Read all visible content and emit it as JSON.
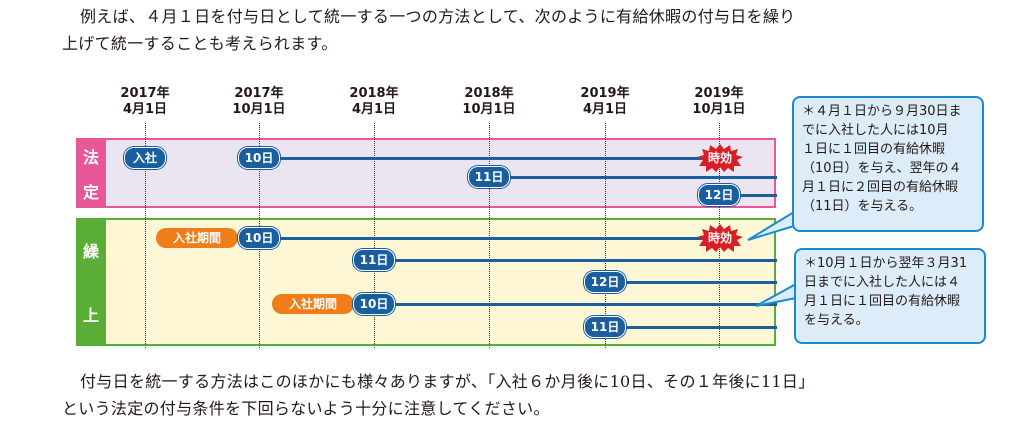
{
  "intro": {
    "line1": "例えば、４月１日を付与日として統一する一つの方法として、次のように有給休暇の付与日を繰り",
    "line2": "上げて統一することも考えられます。"
  },
  "timeline": {
    "dates": [
      {
        "year": "2017年",
        "day": "4月1日"
      },
      {
        "year": "2017年",
        "day": "10月1日"
      },
      {
        "year": "2018年",
        "day": "4月1日"
      },
      {
        "year": "2018年",
        "day": "10月1日"
      },
      {
        "year": "2019年",
        "day": "4月1日"
      },
      {
        "year": "2019年",
        "day": "10月1日"
      }
    ]
  },
  "hotei": {
    "label_1": "法",
    "label_2": "定",
    "join": "入社",
    "grant_10": "10日",
    "grant_11": "11日",
    "grant_12": "12日",
    "expire": "時効"
  },
  "kuriage": {
    "label_1": "繰",
    "label_2": "上",
    "period_1": "入社期間",
    "grant_10a": "10日",
    "grant_11a": "11日",
    "grant_12": "12日",
    "period_2": "入社期間",
    "grant_10b": "10日",
    "grant_11b": "11日",
    "expire": "時効"
  },
  "note1": {
    "lines": [
      "＊４月１日から９月30日ま",
      "でに入社した人には10月",
      "１日に１回目の有給休暇",
      "（10日）を与え、翌年の４",
      "月１日に２回目の有給休暇",
      "（11日）を与える。"
    ]
  },
  "note2": {
    "lines": [
      "＊10月１日から翌年３月31",
      "日までに入社した人には４",
      "月１日に１回目の有給休暇",
      "を与える。"
    ]
  },
  "outro": {
    "line1": "付与日を統一する方法はこのほかにも様々ありますが、「入社６か月後に10日、その１年後に11日」",
    "line2": "という法定の付与条件を下回らないよう十分に注意してください。"
  },
  "colors": {
    "bar": "#1a5e9e",
    "hotei": "#e8579a",
    "kuriage": "#5aae37",
    "period": "#ee7d1a",
    "expire": "#d81f26",
    "note_border": "#1c8ad0"
  }
}
